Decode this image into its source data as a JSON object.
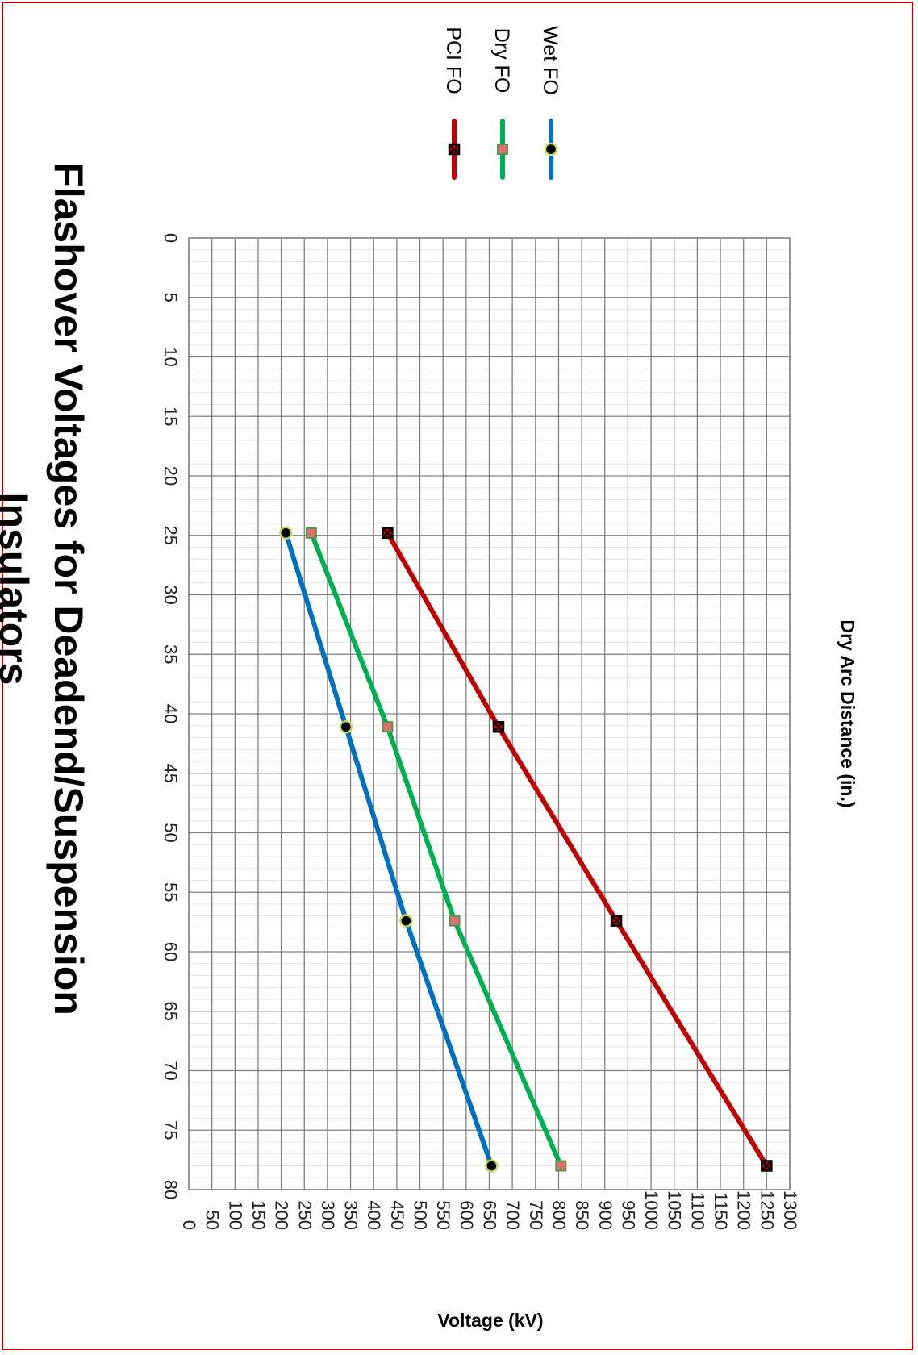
{
  "chart_data": {
    "type": "line",
    "title_line1": "Flashover Voltages for Deadend/Suspension",
    "title_line2": "Insulators",
    "xlabel": "Dry Arc Distance (in.)",
    "ylabel": "Voltage (kV)",
    "xlim": [
      0,
      80
    ],
    "ylim": [
      0,
      1300
    ],
    "xticks": [
      "0",
      "5",
      "10",
      "15",
      "20",
      "25",
      "30",
      "35",
      "40",
      "45",
      "50",
      "55",
      "60",
      "65",
      "70",
      "75",
      "80"
    ],
    "yticks": [
      "0",
      "50",
      "100",
      "150",
      "200",
      "250",
      "300",
      "350",
      "400",
      "450",
      "500",
      "550",
      "600",
      "650",
      "700",
      "750",
      "800",
      "850",
      "900",
      "950",
      "1000",
      "1050",
      "1100",
      "1150",
      "1200",
      "1250",
      "1300"
    ],
    "grid": true,
    "legend_position": "right",
    "orientation": "rotated 90 degrees clockwise",
    "series": [
      {
        "name": "PCI FO",
        "color": "#c00000",
        "marker": "square-x",
        "marker_fill": "#c00000",
        "x": [
          24.8,
          41.1,
          57.4,
          78
        ],
        "y": [
          430,
          670,
          925,
          1250
        ]
      },
      {
        "name": "Dry FO",
        "color": "#00b050",
        "marker": "square",
        "marker_fill": "#e07070",
        "x": [
          24.8,
          41.1,
          57.4,
          78
        ],
        "y": [
          265,
          430,
          575,
          805
        ]
      },
      {
        "name": "Wet FO",
        "color": "#0070c0",
        "marker": "circle",
        "marker_fill": "#000000",
        "x": [
          24.8,
          41.1,
          57.4,
          78
        ],
        "y": [
          210,
          340,
          470,
          655
        ]
      }
    ]
  }
}
